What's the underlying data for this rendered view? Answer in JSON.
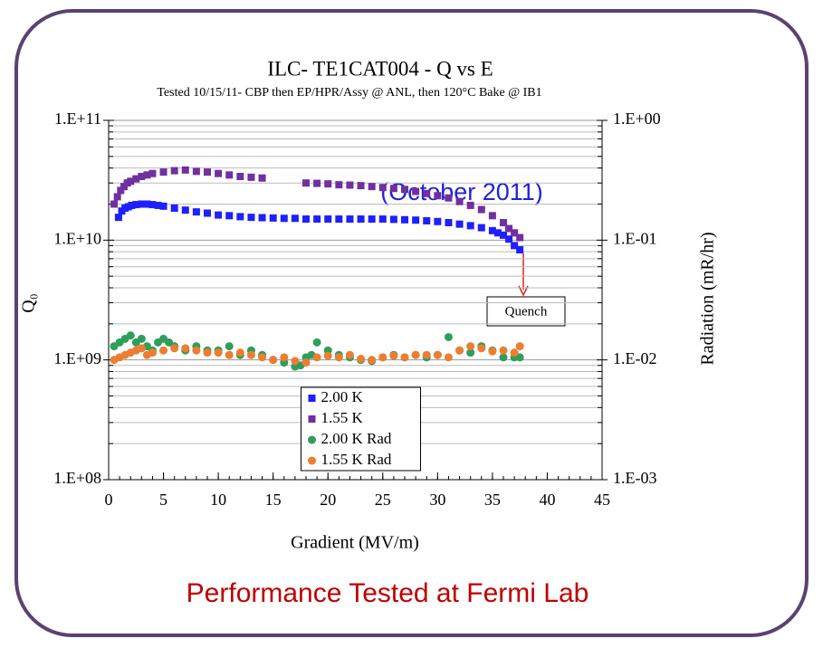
{
  "chart_data": {
    "type": "scatter",
    "title": "ILC- TE1CAT004  - Q vs E",
    "subtitle": "Tested 10/15/11- CBP then EP/HPR/Assy @ ANL, then 120°C Bake @ IB1",
    "xlabel": "Gradient (MV/m)",
    "ylabel": "Q₀",
    "y2label": "Radiation (mR/hr)",
    "annotations": [
      "(October 2011)",
      "Quench"
    ],
    "caption": "Performance Tested at Fermi Lab",
    "xlim": [
      0,
      45
    ],
    "xticks": [
      0,
      5,
      10,
      15,
      20,
      25,
      30,
      35,
      40,
      45
    ],
    "ylim": [
      100000000,
      100000000000
    ],
    "yticks": [
      {
        "value": 100000000,
        "label": "1.E+08"
      },
      {
        "value": 1000000000,
        "label": "1.E+09"
      },
      {
        "value": 10000000000,
        "label": "1.E+10"
      },
      {
        "value": 100000000000,
        "label": "1.E+11"
      }
    ],
    "y2lim": [
      0.001,
      1
    ],
    "y2ticks": [
      {
        "value": 0.001,
        "label": "1.E-03"
      },
      {
        "value": 0.01,
        "label": "1.E-02"
      },
      {
        "value": 0.1,
        "label": "1.E-01"
      },
      {
        "value": 1,
        "label": "1.E+00"
      }
    ],
    "log_scale": true,
    "grid": true,
    "legend": "lower center",
    "series": [
      {
        "name": "2.00 K",
        "color": "#1f1fff",
        "marker": "square",
        "x": [
          0.9,
          1.2,
          1.5,
          1.8,
          2.1,
          2.5,
          3,
          3.5,
          4,
          4.5,
          5,
          6,
          7,
          8,
          9,
          10,
          11,
          12,
          13,
          14,
          15,
          16,
          17,
          18,
          19,
          20,
          21,
          22,
          23,
          24,
          25,
          26,
          27,
          28,
          29,
          30,
          31,
          32,
          33,
          34,
          35,
          35.5,
          36,
          36.5,
          37,
          37.5
        ],
        "values": [
          15500000000,
          17500000000,
          18500000000,
          19000000000,
          19500000000,
          19800000000,
          20000000000,
          20000000000,
          19800000000,
          19500000000,
          19200000000,
          18500000000,
          17800000000,
          17200000000,
          16800000000,
          16200000000,
          16000000000,
          15700000000,
          15500000000,
          15400000000,
          15300000000,
          15200000000,
          15200000000,
          15000000000,
          15000000000,
          15000000000,
          15000000000,
          15000000000,
          15000000000,
          15000000000,
          15000000000,
          14900000000,
          14800000000,
          14700000000,
          14500000000,
          14300000000,
          14000000000,
          13600000000,
          13200000000,
          12700000000,
          12000000000,
          11500000000,
          11000000000,
          10200000000,
          9000000000,
          8300000000
        ]
      },
      {
        "name": "1.55 K",
        "color": "#7030a0",
        "marker": "square",
        "x": [
          0.5,
          0.8,
          1.1,
          1.4,
          1.7,
          2,
          2.5,
          3,
          3.5,
          4,
          5,
          6,
          7,
          8,
          9,
          10,
          11,
          12,
          13,
          14,
          18,
          19,
          20,
          21,
          22,
          23,
          24,
          25,
          26,
          27,
          28,
          29,
          30,
          31,
          32,
          33,
          34,
          35,
          36,
          36.5,
          37,
          37.5
        ],
        "values": [
          20000000000,
          23000000000,
          26000000000,
          28000000000,
          30000000000,
          31000000000,
          32500000000,
          34000000000,
          35000000000,
          36000000000,
          37000000000,
          38000000000,
          38500000000,
          37500000000,
          37000000000,
          36000000000,
          35000000000,
          34000000000,
          33500000000,
          33000000000,
          30000000000,
          29800000000,
          29500000000,
          29000000000,
          28800000000,
          28500000000,
          28000000000,
          27500000000,
          27000000000,
          26500000000,
          25500000000,
          24500000000,
          23500000000,
          22500000000,
          21000000000,
          19500000000,
          18000000000,
          16000000000,
          14000000000,
          12500000000,
          11500000000,
          10500000000
        ]
      },
      {
        "name": "2.00 K Rad",
        "color": "#2e9e5b",
        "marker": "circle",
        "axis": "y2",
        "x": [
          0.5,
          1,
          1.5,
          2,
          2.5,
          3,
          3.5,
          4,
          4.5,
          5,
          5.5,
          6,
          7,
          8,
          9,
          10,
          11,
          12,
          13,
          14,
          15,
          16,
          17,
          17.5,
          18,
          18.5,
          19,
          20,
          21,
          22,
          23,
          24,
          25,
          26,
          27,
          28,
          29,
          30,
          31,
          32,
          33,
          34,
          35,
          36,
          37,
          37.5
        ],
        "values": [
          0.013,
          0.014,
          0.015,
          0.016,
          0.014,
          0.015,
          0.013,
          0.012,
          0.014,
          0.015,
          0.014,
          0.013,
          0.012,
          0.013,
          0.012,
          0.012,
          0.013,
          0.011,
          0.012,
          0.011,
          0.01,
          0.0095,
          0.0088,
          0.009,
          0.0105,
          0.011,
          0.014,
          0.012,
          0.011,
          0.0105,
          0.01,
          0.0098,
          0.0105,
          0.011,
          0.0105,
          0.011,
          0.0105,
          0.011,
          0.0155,
          0.012,
          0.0115,
          0.013,
          0.012,
          0.0105,
          0.0105,
          0.0105
        ]
      },
      {
        "name": "1.55 K Rad",
        "color": "#ed7d31",
        "marker": "circle",
        "axis": "y2",
        "x": [
          0.5,
          1,
          1.5,
          2,
          2.5,
          3,
          3.5,
          4,
          5,
          6,
          7,
          8,
          9,
          10,
          11,
          12,
          13,
          14,
          15,
          16,
          17,
          18,
          19,
          20,
          21,
          22,
          23,
          24,
          25,
          26,
          27,
          28,
          29,
          30,
          31,
          32,
          33,
          34,
          35,
          36,
          37,
          37.5
        ],
        "values": [
          0.01,
          0.0105,
          0.011,
          0.0115,
          0.012,
          0.0125,
          0.011,
          0.0115,
          0.012,
          0.0125,
          0.0125,
          0.012,
          0.0115,
          0.0115,
          0.011,
          0.0115,
          0.011,
          0.0105,
          0.01,
          0.0105,
          0.0098,
          0.0095,
          0.0105,
          0.0108,
          0.0105,
          0.011,
          0.0102,
          0.01,
          0.0105,
          0.0108,
          0.0105,
          0.011,
          0.011,
          0.011,
          0.0105,
          0.012,
          0.013,
          0.0125,
          0.0118,
          0.012,
          0.0115,
          0.013
        ]
      }
    ]
  }
}
